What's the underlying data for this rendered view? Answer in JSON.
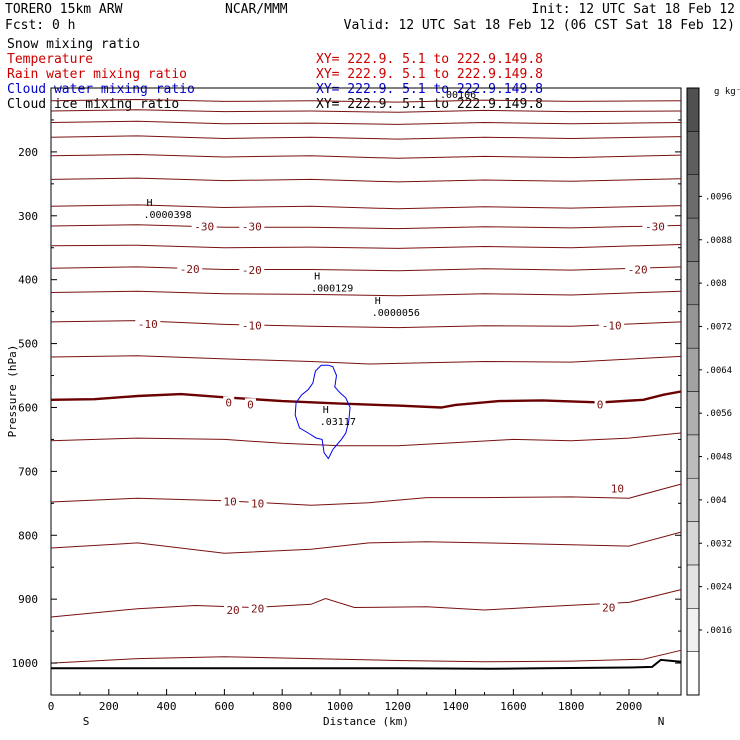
{
  "header": {
    "model": "TORERO  15km ARW",
    "org": "NCAR/MMM",
    "init": "Init: 12 UTC Sat 18 Feb 12",
    "fcst": "Fcst:    0 h",
    "valid": "Valid: 12 UTC Sat 18 Feb 12 (06 CST Sat 18 Feb 12)"
  },
  "fields": [
    {
      "name": "Snow mixing ratio",
      "xy": "",
      "color": "#000000"
    },
    {
      "name": "Temperature",
      "xy": "XY= 222.9.  5.1 to 222.9.149.8",
      "color": "#cc0000"
    },
    {
      "name": "Rain water mixing ratio",
      "xy": "XY= 222.9.  5.1 to 222.9.149.8",
      "color": "#cc0000"
    },
    {
      "name": "Cloud water mixing ratio",
      "xy": "XY= 222.9.  5.1 to 222.9.149.8",
      "color": "#0000cc"
    },
    {
      "name": "Cloud ice mixing ratio",
      "xy": "XY= 222.9.  5.1 to 222.9.149.8",
      "color": "#000000"
    }
  ],
  "overlap_label": ".00106",
  "colors": {
    "temperature": "#7a1010",
    "zero_isotherm": "#6a0000",
    "cloud_water": "#0000ee",
    "terrain": "#000000"
  },
  "chart_data": {
    "type": "contour",
    "xlabel": "Distance (km)",
    "ylabel": "Pressure (hPa)",
    "xlim": [
      0,
      2180
    ],
    "ylim": [
      1050,
      100
    ],
    "x_ticks": [
      0,
      200,
      400,
      600,
      800,
      1000,
      1200,
      1400,
      1600,
      1800,
      2000
    ],
    "y_ticks": [
      200,
      300,
      400,
      500,
      600,
      700,
      800,
      900,
      1000
    ],
    "left_end_label": "S",
    "right_end_label": "N",
    "temperature_labels": [
      {
        "text": "-30",
        "x": 530,
        "p": 317
      },
      {
        "text": "-30",
        "x": 695,
        "p": 317
      },
      {
        "text": "-30",
        "x": 2090,
        "p": 317
      },
      {
        "text": "-20",
        "x": 480,
        "p": 383
      },
      {
        "text": "-20",
        "x": 695,
        "p": 385
      },
      {
        "text": "-20",
        "x": 2030,
        "p": 384
      },
      {
        "text": "-10",
        "x": 335,
        "p": 469
      },
      {
        "text": "-10",
        "x": 695,
        "p": 472
      },
      {
        "text": "-10",
        "x": 1940,
        "p": 472
      },
      {
        "text": "0",
        "x": 615,
        "p": 592
      },
      {
        "text": "0",
        "x": 690,
        "p": 595
      },
      {
        "text": "0",
        "x": 1900,
        "p": 595
      },
      {
        "text": "10",
        "x": 620,
        "p": 747
      },
      {
        "text": "10",
        "x": 715,
        "p": 750
      },
      {
        "text": "10",
        "x": 1960,
        "p": 727
      },
      {
        "text": "20",
        "x": 630,
        "p": 917
      },
      {
        "text": "20",
        "x": 715,
        "p": 915
      },
      {
        "text": "20",
        "x": 1930,
        "p": 913
      }
    ],
    "highs": [
      {
        "label": "H",
        "value": ".0000398",
        "x": 320,
        "p": 285
      },
      {
        "label": "H",
        "value": ".000129",
        "x": 900,
        "p": 400
      },
      {
        "label": "H",
        "value": ".0000056",
        "x": 1110,
        "p": 438
      },
      {
        "label": "H",
        "value": ".03117",
        "x": 930,
        "p": 609
      }
    ],
    "cloud_water_outline": [
      [
        960,
        534
      ],
      [
        975,
        536
      ],
      [
        988,
        550
      ],
      [
        982,
        568
      ],
      [
        1000,
        577
      ],
      [
        1020,
        585
      ],
      [
        1035,
        600
      ],
      [
        1030,
        622
      ],
      [
        1020,
        640
      ],
      [
        1005,
        650
      ],
      [
        990,
        658
      ],
      [
        975,
        666
      ],
      [
        960,
        680
      ],
      [
        945,
        671
      ],
      [
        938,
        650
      ],
      [
        918,
        648
      ],
      [
        890,
        640
      ],
      [
        860,
        632
      ],
      [
        845,
        612
      ],
      [
        848,
        592
      ],
      [
        868,
        580
      ],
      [
        890,
        572
      ],
      [
        906,
        562
      ],
      [
        915,
        543
      ],
      [
        935,
        534
      ],
      [
        960,
        534
      ]
    ],
    "zero_isotherm": [
      [
        0,
        588
      ],
      [
        150,
        587
      ],
      [
        300,
        582
      ],
      [
        450,
        579
      ],
      [
        600,
        584
      ],
      [
        800,
        590
      ],
      [
        1000,
        594
      ],
      [
        1200,
        597
      ],
      [
        1350,
        600
      ],
      [
        1400,
        596
      ],
      [
        1550,
        590
      ],
      [
        1700,
        589
      ],
      [
        1900,
        592
      ],
      [
        2050,
        588
      ],
      [
        2120,
        580
      ],
      [
        2180,
        575
      ]
    ],
    "isotherms": [
      [
        [
          0,
          120
        ],
        [
          300,
          118
        ],
        [
          600,
          121
        ],
        [
          900,
          120
        ],
        [
          1200,
          122
        ],
        [
          1500,
          119
        ],
        [
          1800,
          121
        ],
        [
          2180,
          120
        ]
      ],
      [
        [
          0,
          136
        ],
        [
          300,
          134
        ],
        [
          600,
          137
        ],
        [
          900,
          136
        ],
        [
          1200,
          138
        ],
        [
          1500,
          135
        ],
        [
          1800,
          137
        ],
        [
          2180,
          136
        ]
      ],
      [
        [
          0,
          154
        ],
        [
          300,
          152
        ],
        [
          600,
          156
        ],
        [
          900,
          155
        ],
        [
          1200,
          157
        ],
        [
          1500,
          154
        ],
        [
          1800,
          156
        ],
        [
          2180,
          154
        ]
      ],
      [
        [
          0,
          177
        ],
        [
          300,
          175
        ],
        [
          600,
          179
        ],
        [
          900,
          177
        ],
        [
          1200,
          180
        ],
        [
          1500,
          177
        ],
        [
          1800,
          179
        ],
        [
          2180,
          176
        ]
      ],
      [
        [
          0,
          206
        ],
        [
          300,
          204
        ],
        [
          600,
          208
        ],
        [
          900,
          206
        ],
        [
          1200,
          210
        ],
        [
          1500,
          207
        ],
        [
          1800,
          209
        ],
        [
          2180,
          205
        ]
      ],
      [
        [
          0,
          243
        ],
        [
          300,
          241
        ],
        [
          600,
          245
        ],
        [
          900,
          243
        ],
        [
          1200,
          247
        ],
        [
          1500,
          244
        ],
        [
          1800,
          246
        ],
        [
          2180,
          242
        ]
      ],
      [
        [
          0,
          285
        ],
        [
          300,
          283
        ],
        [
          600,
          287
        ],
        [
          900,
          285
        ],
        [
          1200,
          289
        ],
        [
          1500,
          286
        ],
        [
          1800,
          288
        ],
        [
          2180,
          284
        ]
      ],
      [
        [
          0,
          316
        ],
        [
          300,
          314
        ],
        [
          600,
          318
        ],
        [
          900,
          318
        ],
        [
          1200,
          320
        ],
        [
          1500,
          317
        ],
        [
          1800,
          319
        ],
        [
          2180,
          315
        ]
      ],
      [
        [
          0,
          347
        ],
        [
          300,
          346
        ],
        [
          600,
          350
        ],
        [
          900,
          349
        ],
        [
          1200,
          351
        ],
        [
          1500,
          348
        ],
        [
          1800,
          350
        ],
        [
          2180,
          345
        ]
      ],
      [
        [
          0,
          382
        ],
        [
          300,
          380
        ],
        [
          600,
          384
        ],
        [
          900,
          384
        ],
        [
          1200,
          386
        ],
        [
          1500,
          383
        ],
        [
          1800,
          385
        ],
        [
          2180,
          380
        ]
      ],
      [
        [
          0,
          420
        ],
        [
          300,
          418
        ],
        [
          600,
          422
        ],
        [
          900,
          423
        ],
        [
          1200,
          425
        ],
        [
          1500,
          422
        ],
        [
          1800,
          424
        ],
        [
          2180,
          418
        ]
      ],
      [
        [
          0,
          466
        ],
        [
          300,
          464
        ],
        [
          600,
          470
        ],
        [
          900,
          473
        ],
        [
          1200,
          475
        ],
        [
          1500,
          472
        ],
        [
          1800,
          473
        ],
        [
          2180,
          466
        ]
      ],
      [
        [
          0,
          521
        ],
        [
          300,
          519
        ],
        [
          600,
          524
        ],
        [
          900,
          528
        ],
        [
          1100,
          532
        ],
        [
          1300,
          530
        ],
        [
          1500,
          528
        ],
        [
          1800,
          529
        ],
        [
          2180,
          520
        ]
      ],
      [
        [
          0,
          652
        ],
        [
          300,
          648
        ],
        [
          600,
          650
        ],
        [
          800,
          656
        ],
        [
          1000,
          660
        ],
        [
          1200,
          660
        ],
        [
          1400,
          655
        ],
        [
          1600,
          650
        ],
        [
          1800,
          652
        ],
        [
          2000,
          648
        ],
        [
          2180,
          640
        ]
      ],
      [
        [
          0,
          748
        ],
        [
          300,
          742
        ],
        [
          600,
          746
        ],
        [
          900,
          753
        ],
        [
          1100,
          749
        ],
        [
          1300,
          741
        ],
        [
          1500,
          741
        ],
        [
          1800,
          740
        ],
        [
          2000,
          742
        ],
        [
          2180,
          720
        ]
      ],
      [
        [
          0,
          820
        ],
        [
          300,
          812
        ],
        [
          600,
          828
        ],
        [
          900,
          822
        ],
        [
          1100,
          812
        ],
        [
          1300,
          810
        ],
        [
          1500,
          812
        ],
        [
          1800,
          815
        ],
        [
          2000,
          817
        ],
        [
          2180,
          795
        ]
      ],
      [
        [
          0,
          928
        ],
        [
          300,
          915
        ],
        [
          500,
          910
        ],
        [
          700,
          913
        ],
        [
          900,
          908
        ],
        [
          950,
          899
        ],
        [
          1050,
          913
        ],
        [
          1300,
          912
        ],
        [
          1500,
          917
        ],
        [
          1700,
          912
        ],
        [
          2000,
          905
        ],
        [
          2180,
          885
        ]
      ],
      [
        [
          0,
          1000
        ],
        [
          300,
          993
        ],
        [
          600,
          990
        ],
        [
          900,
          993
        ],
        [
          1200,
          996
        ],
        [
          1500,
          998
        ],
        [
          1800,
          997
        ],
        [
          2050,
          994
        ],
        [
          2180,
          980
        ]
      ]
    ],
    "terrain": [
      [
        0,
        1008
      ],
      [
        400,
        1008
      ],
      [
        800,
        1008
      ],
      [
        1200,
        1008
      ],
      [
        1520,
        1009
      ],
      [
        1700,
        1008
      ],
      [
        2000,
        1007
      ],
      [
        2080,
        1006
      ],
      [
        2110,
        995
      ],
      [
        2180,
        998
      ]
    ],
    "colorbar": {
      "unit": "g kg⁻¹",
      "ticks": [
        ".0016",
        ".0024",
        ".0032",
        ".004",
        ".0048",
        ".0056",
        ".0064",
        ".0072",
        ".008",
        ".0088",
        ".0096"
      ],
      "shades": [
        "#ffffff",
        "#f0f0f0",
        "#e3e3e3",
        "#d6d6d6",
        "#c9c9c9",
        "#bcbcbc",
        "#afafaf",
        "#a2a2a2",
        "#959595",
        "#888888",
        "#7a7a7a",
        "#6c6c6c",
        "#5e5e5e",
        "#505050"
      ]
    }
  }
}
